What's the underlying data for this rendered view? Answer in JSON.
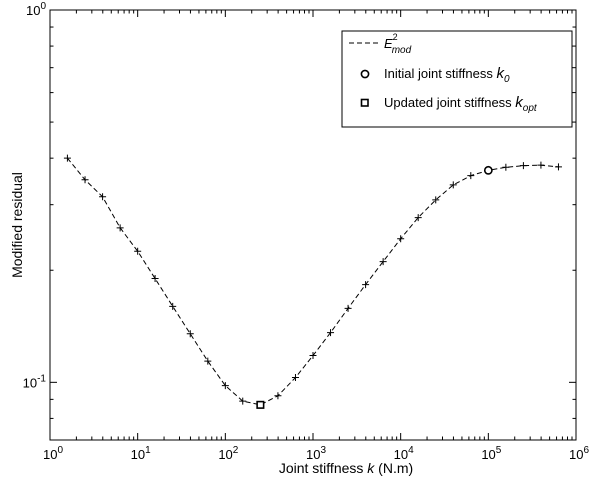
{
  "chart_data": {
    "type": "line",
    "xlabel_prefix": "Joint stiffness ",
    "xlabel_var": "k",
    "xlabel_suffix": " (N.m)",
    "ylabel": "Modified residual",
    "xscale": "log",
    "yscale": "log",
    "xlim": [
      1,
      1000000
    ],
    "ylim": [
      0.07,
      1
    ],
    "x_ticks": [
      {
        "value": 1,
        "base": "10",
        "exp": "0"
      },
      {
        "value": 10,
        "base": "10",
        "exp": "1"
      },
      {
        "value": 100,
        "base": "10",
        "exp": "2"
      },
      {
        "value": 1000,
        "base": "10",
        "exp": "3"
      },
      {
        "value": 10000,
        "base": "10",
        "exp": "4"
      },
      {
        "value": 100000,
        "base": "10",
        "exp": "5"
      },
      {
        "value": 1000000,
        "base": "10",
        "exp": "6"
      }
    ],
    "y_ticks": [
      {
        "value": 0.1,
        "base": "10",
        "exp": "-1"
      },
      {
        "value": 1,
        "base": "10",
        "exp": "0"
      }
    ],
    "grid": false,
    "legend_position": "top-right",
    "legend": [
      {
        "style": "dashed-line",
        "base": "E",
        "sup": "2",
        "sub": "mod"
      },
      {
        "style": "circle-marker",
        "text": "Initial joint stiffness ",
        "var": "k",
        "sub": "0"
      },
      {
        "style": "square-marker",
        "text": "Updated joint stiffness ",
        "var": "k",
        "sub": "opt"
      }
    ],
    "series": [
      {
        "marker": "plus",
        "line": "dashed",
        "x": [
          1.58,
          2.51,
          3.98,
          6.31,
          10,
          15.8,
          25.1,
          39.8,
          63.1,
          100,
          158,
          251,
          398,
          631,
          1000,
          1585,
          2512,
          3981,
          6310,
          10000,
          15849,
          25119,
          39811,
          63096,
          100000,
          158489,
          251189,
          398107,
          630957
        ],
        "y": [
          0.4,
          0.35,
          0.315,
          0.26,
          0.225,
          0.19,
          0.16,
          0.135,
          0.114,
          0.098,
          0.089,
          0.087,
          0.092,
          0.103,
          0.118,
          0.136,
          0.158,
          0.183,
          0.211,
          0.243,
          0.277,
          0.309,
          0.339,
          0.359,
          0.371,
          0.378,
          0.382,
          0.383,
          0.379
        ]
      }
    ],
    "points": {
      "initial": {
        "x": 100000,
        "y": 0.371
      },
      "optimal": {
        "x": 251,
        "y": 0.087
      }
    }
  }
}
